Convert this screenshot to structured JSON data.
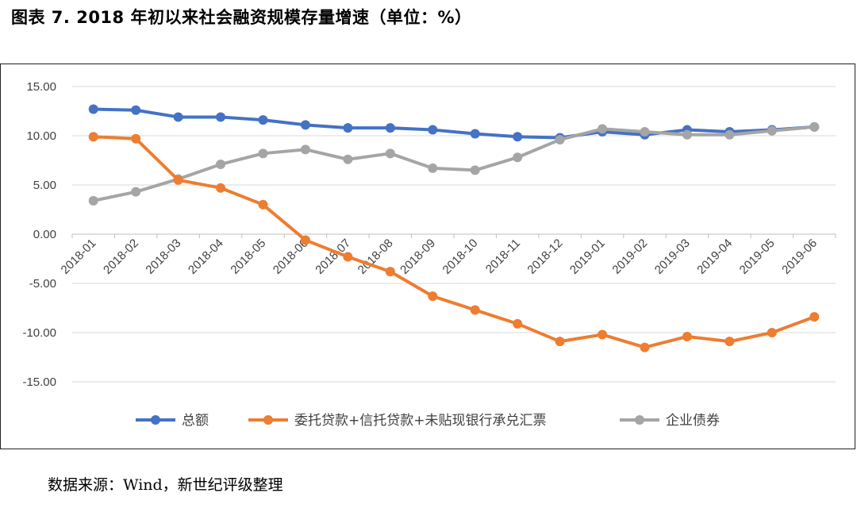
{
  "figure": {
    "title": "图表 7. 2018 年初以来社会融资规模存量增速（单位：%）",
    "source": "数据来源：Wind，新世纪评级整理"
  },
  "chart_data": {
    "type": "line",
    "categories": [
      "2018-01",
      "2018-02",
      "2018-03",
      "2018-04",
      "2018-05",
      "2018-06",
      "2018-07",
      "2018-08",
      "2018-09",
      "2018-10",
      "2018-11",
      "2018-12",
      "2019-01",
      "2019-02",
      "2019-03",
      "2019-04",
      "2019-05",
      "2019-06"
    ],
    "y_ticks": [
      "15.00",
      "10.00",
      "5.00",
      "0.00",
      "-5.00",
      "-10.00",
      "-15.00"
    ],
    "ylim": [
      -15,
      15
    ],
    "grid": true,
    "legend_position": "bottom",
    "series": [
      {
        "name": "总额",
        "color": "#4472C4",
        "values": [
          12.7,
          12.6,
          11.9,
          11.9,
          11.6,
          11.1,
          10.8,
          10.8,
          10.6,
          10.2,
          9.9,
          9.8,
          10.4,
          10.1,
          10.6,
          10.4,
          10.6,
          10.9
        ]
      },
      {
        "name": "委托贷款+信托贷款+未贴现银行承兑汇票",
        "color": "#ED7D31",
        "values": [
          9.9,
          9.7,
          5.5,
          4.7,
          3.0,
          -0.6,
          -2.3,
          -3.8,
          -6.3,
          -7.7,
          -9.1,
          -10.9,
          -10.2,
          -11.5,
          -10.4,
          -10.9,
          -10.0,
          -8.4
        ]
      },
      {
        "name": "企业债券",
        "color": "#A5A5A5",
        "values": [
          3.4,
          4.3,
          5.6,
          7.1,
          8.2,
          8.6,
          7.6,
          8.2,
          6.7,
          6.5,
          7.8,
          9.6,
          10.7,
          10.4,
          10.1,
          10.1,
          10.5,
          10.9
        ]
      }
    ]
  }
}
